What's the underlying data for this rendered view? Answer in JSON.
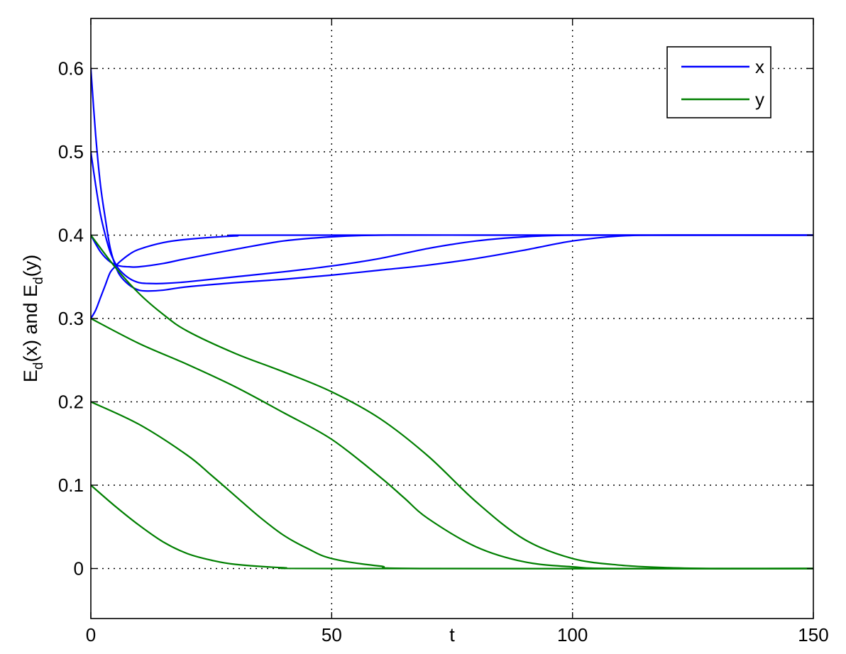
{
  "chart_data": {
    "type": "line",
    "xlabel": "t",
    "ylabel_parts": {
      "e1": "E",
      "s1": "d",
      "m1": "(x) and ",
      "e2": "E",
      "s2": "d",
      "m2": "(y)"
    },
    "xlim": [
      0,
      150
    ],
    "ylim": [
      -0.06,
      0.66
    ],
    "xticks": [
      0,
      50,
      100,
      150
    ],
    "xtick_labels": [
      "0",
      "50",
      "100",
      "150"
    ],
    "yticks": [
      0,
      0.1,
      0.2,
      0.3,
      0.4,
      0.5,
      0.6
    ],
    "ytick_labels": [
      "0",
      "0.1",
      "0.2",
      "0.3",
      "0.4",
      "0.5",
      "0.6"
    ],
    "grid": true,
    "legend": {
      "placement": "top-right",
      "entries": [
        {
          "label": "x",
          "color": "#0000ff"
        },
        {
          "label": "y",
          "color": "#007f00"
        }
      ]
    },
    "series": [
      {
        "name": "x",
        "color": "#0000ff",
        "points": [
          [
            0,
            0.6
          ],
          [
            1,
            0.52
          ],
          [
            2,
            0.46
          ],
          [
            3,
            0.42
          ],
          [
            4,
            0.385
          ],
          [
            5,
            0.365
          ],
          [
            6,
            0.352
          ],
          [
            8,
            0.34
          ],
          [
            10,
            0.334
          ],
          [
            12,
            0.333
          ],
          [
            15,
            0.334
          ],
          [
            20,
            0.338
          ],
          [
            30,
            0.343
          ],
          [
            40,
            0.347
          ],
          [
            50,
            0.352
          ],
          [
            60,
            0.358
          ],
          [
            70,
            0.364
          ],
          [
            80,
            0.372
          ],
          [
            90,
            0.382
          ],
          [
            100,
            0.393
          ],
          [
            110,
            0.399
          ],
          [
            120,
            0.4
          ],
          [
            150,
            0.4
          ]
        ]
      },
      {
        "name": "x",
        "color": "#0000ff",
        "points": [
          [
            0,
            0.5
          ],
          [
            1,
            0.46
          ],
          [
            2,
            0.425
          ],
          [
            3,
            0.4
          ],
          [
            4,
            0.38
          ],
          [
            5,
            0.367
          ],
          [
            6,
            0.358
          ],
          [
            8,
            0.348
          ],
          [
            10,
            0.343
          ],
          [
            12,
            0.342
          ],
          [
            15,
            0.342
          ],
          [
            20,
            0.344
          ],
          [
            30,
            0.35
          ],
          [
            40,
            0.356
          ],
          [
            50,
            0.363
          ],
          [
            60,
            0.372
          ],
          [
            70,
            0.384
          ],
          [
            80,
            0.393
          ],
          [
            90,
            0.398
          ],
          [
            100,
            0.4
          ],
          [
            120,
            0.4
          ],
          [
            150,
            0.4
          ]
        ]
      },
      {
        "name": "x",
        "color": "#0000ff",
        "points": [
          [
            0,
            0.4
          ],
          [
            2,
            0.38
          ],
          [
            4,
            0.368
          ],
          [
            6,
            0.363
          ],
          [
            8,
            0.362
          ],
          [
            10,
            0.362
          ],
          [
            15,
            0.366
          ],
          [
            20,
            0.372
          ],
          [
            30,
            0.383
          ],
          [
            40,
            0.393
          ],
          [
            50,
            0.398
          ],
          [
            60,
            0.4
          ],
          [
            80,
            0.4
          ],
          [
            150,
            0.4
          ]
        ]
      },
      {
        "name": "x",
        "color": "#0000ff",
        "points": [
          [
            0,
            0.3
          ],
          [
            1,
            0.31
          ],
          [
            2,
            0.325
          ],
          [
            3,
            0.34
          ],
          [
            4,
            0.355
          ],
          [
            5,
            0.362
          ],
          [
            6,
            0.368
          ],
          [
            8,
            0.377
          ],
          [
            10,
            0.383
          ],
          [
            15,
            0.391
          ],
          [
            20,
            0.395
          ],
          [
            30,
            0.399
          ],
          [
            40,
            0.4
          ],
          [
            150,
            0.4
          ]
        ]
      },
      {
        "name": "y",
        "color": "#007f00",
        "points": [
          [
            0,
            0.4
          ],
          [
            5,
            0.362
          ],
          [
            10,
            0.33
          ],
          [
            15,
            0.305
          ],
          [
            20,
            0.285
          ],
          [
            30,
            0.258
          ],
          [
            40,
            0.236
          ],
          [
            50,
            0.212
          ],
          [
            60,
            0.18
          ],
          [
            70,
            0.135
          ],
          [
            80,
            0.08
          ],
          [
            90,
            0.035
          ],
          [
            100,
            0.012
          ],
          [
            110,
            0.004
          ],
          [
            120,
            0.001
          ],
          [
            130,
            0
          ],
          [
            150,
            0
          ]
        ]
      },
      {
        "name": "y",
        "color": "#007f00",
        "points": [
          [
            0,
            0.3
          ],
          [
            10,
            0.27
          ],
          [
            20,
            0.245
          ],
          [
            30,
            0.218
          ],
          [
            40,
            0.187
          ],
          [
            50,
            0.155
          ],
          [
            60,
            0.11
          ],
          [
            65,
            0.085
          ],
          [
            70,
            0.06
          ],
          [
            80,
            0.026
          ],
          [
            90,
            0.008
          ],
          [
            100,
            0.002
          ],
          [
            110,
            0
          ],
          [
            150,
            0
          ]
        ]
      },
      {
        "name": "y",
        "color": "#007f00",
        "points": [
          [
            0,
            0.2
          ],
          [
            10,
            0.173
          ],
          [
            20,
            0.136
          ],
          [
            25,
            0.112
          ],
          [
            30,
            0.087
          ],
          [
            35,
            0.062
          ],
          [
            40,
            0.04
          ],
          [
            45,
            0.024
          ],
          [
            50,
            0.012
          ],
          [
            60,
            0.003
          ],
          [
            70,
            0
          ],
          [
            150,
            0
          ]
        ]
      },
      {
        "name": "y",
        "color": "#007f00",
        "points": [
          [
            0,
            0.1
          ],
          [
            5,
            0.075
          ],
          [
            10,
            0.052
          ],
          [
            15,
            0.032
          ],
          [
            20,
            0.018
          ],
          [
            25,
            0.01
          ],
          [
            30,
            0.005
          ],
          [
            40,
            0.001
          ],
          [
            50,
            0
          ],
          [
            150,
            0
          ]
        ]
      }
    ]
  }
}
